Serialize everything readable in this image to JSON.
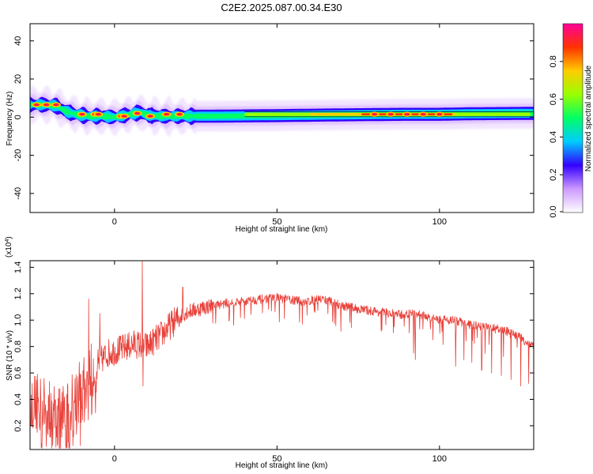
{
  "title": "C2E2.2025.087.00.34.E30",
  "chart_data": [
    {
      "type": "heatmap",
      "xlabel": "Height of straight line (km)",
      "ylabel": "Frequency (Hz)",
      "xlim": [
        -26,
        129
      ],
      "ylim": [
        -50,
        49
      ],
      "xticks": [
        0,
        50,
        100
      ],
      "yticks": [
        -40,
        -20,
        0,
        20,
        40
      ],
      "colorbar": {
        "label": "Normalized spectral amplitude",
        "range": [
          0,
          1
        ],
        "ticks": [
          "0.0",
          "0.2",
          "0.4",
          "0.6",
          "0.8"
        ],
        "colors": [
          "#ffffff",
          "#cc99ff",
          "#3300ff",
          "#00ccff",
          "#00ff66",
          "#99ff00",
          "#ffcc00",
          "#ff3300",
          "#ff0099"
        ]
      },
      "ridge": [
        {
          "x": -26,
          "y": 6.5
        },
        {
          "x": -22,
          "y": 6.5
        },
        {
          "x": -18,
          "y": 6
        },
        {
          "x": -15,
          "y": 3
        },
        {
          "x": -12,
          "y": 1.5
        },
        {
          "x": -8,
          "y": 0.5
        },
        {
          "x": -4,
          "y": 0.5
        },
        {
          "x": 0,
          "y": 0
        },
        {
          "x": 5,
          "y": 1.5
        },
        {
          "x": 8,
          "y": 2.5
        },
        {
          "x": 10,
          "y": 1
        },
        {
          "x": 14,
          "y": 0.5
        },
        {
          "x": 20,
          "y": 0.5
        },
        {
          "x": 30,
          "y": 0.5
        },
        {
          "x": 50,
          "y": 0.8
        },
        {
          "x": 70,
          "y": 1.2
        },
        {
          "x": 90,
          "y": 1.5
        },
        {
          "x": 100,
          "y": 1.5
        },
        {
          "x": 110,
          "y": 1.8
        },
        {
          "x": 129,
          "y": 2.0
        }
      ],
      "hotspots": [
        {
          "x": -24,
          "y": 6.5
        },
        {
          "x": -21,
          "y": 6.5
        },
        {
          "x": -18,
          "y": 6.5
        },
        {
          "x": -10,
          "y": 1.5
        },
        {
          "x": -6,
          "y": 1.5
        },
        {
          "x": -5,
          "y": 1.5
        },
        {
          "x": 2,
          "y": 0.5
        },
        {
          "x": 3,
          "y": 0.5
        },
        {
          "x": 7,
          "y": 2
        },
        {
          "x": 11,
          "y": 0.5
        },
        {
          "x": 16,
          "y": 1.5
        },
        {
          "x": 20,
          "y": 1.5
        },
        {
          "x": 80,
          "y": 1.5
        },
        {
          "x": 85,
          "y": 1.5
        },
        {
          "x": 90,
          "y": 1.5
        },
        {
          "x": 95,
          "y": 1.5
        },
        {
          "x": 100,
          "y": 1.5
        }
      ]
    },
    {
      "type": "line",
      "xlabel": "Height of straight line (km)",
      "ylabel": "SNR (10 * v/v)",
      "y_multiplier": "(x10^4)",
      "xlim": [
        -26,
        129
      ],
      "ylim": [
        0.02,
        1.45
      ],
      "xticks": [
        0,
        50,
        100
      ],
      "yticks": [
        0.2,
        0.4,
        0.6,
        0.8,
        1.0,
        1.2,
        1.4
      ],
      "color": "#e8413a",
      "envelope": [
        {
          "x": -26,
          "y": 0.4
        },
        {
          "x": -22,
          "y": 0.35
        },
        {
          "x": -18,
          "y": 0.3
        },
        {
          "x": -14,
          "y": 0.35
        },
        {
          "x": -10,
          "y": 0.5
        },
        {
          "x": -6,
          "y": 0.65
        },
        {
          "x": -2,
          "y": 0.75
        },
        {
          "x": 2,
          "y": 0.78
        },
        {
          "x": 6,
          "y": 0.82
        },
        {
          "x": 10,
          "y": 0.8
        },
        {
          "x": 14,
          "y": 0.88
        },
        {
          "x": 18,
          "y": 0.98
        },
        {
          "x": 22,
          "y": 1.06
        },
        {
          "x": 28,
          "y": 1.1
        },
        {
          "x": 35,
          "y": 1.13
        },
        {
          "x": 42,
          "y": 1.15
        },
        {
          "x": 50,
          "y": 1.17
        },
        {
          "x": 58,
          "y": 1.14
        },
        {
          "x": 64,
          "y": 1.16
        },
        {
          "x": 70,
          "y": 1.11
        },
        {
          "x": 76,
          "y": 1.08
        },
        {
          "x": 82,
          "y": 1.06
        },
        {
          "x": 88,
          "y": 1.04
        },
        {
          "x": 93,
          "y": 1.05
        },
        {
          "x": 98,
          "y": 1.01
        },
        {
          "x": 104,
          "y": 1.0
        },
        {
          "x": 110,
          "y": 0.96
        },
        {
          "x": 116,
          "y": 0.94
        },
        {
          "x": 120,
          "y": 0.92
        },
        {
          "x": 124,
          "y": 0.88
        },
        {
          "x": 129,
          "y": 0.8
        }
      ],
      "spikes": [
        {
          "x": 8.5,
          "y": 1.45
        },
        {
          "x": 8.8,
          "y": 0.5
        },
        {
          "x": 21,
          "y": 1.25
        },
        {
          "x": -8,
          "y": 1.16
        },
        {
          "x": -4.5,
          "y": 1.05
        },
        {
          "x": -10.5,
          "y": 0.05
        },
        {
          "x": -15,
          "y": 0.05
        },
        {
          "x": -19,
          "y": 0.05
        },
        {
          "x": -25.5,
          "y": 0.2
        },
        {
          "x": -9,
          "y": 0.5
        },
        {
          "x": 92,
          "y": 0.75
        },
        {
          "x": 92.6,
          "y": 0.7
        },
        {
          "x": 105,
          "y": 0.65
        },
        {
          "x": 107.5,
          "y": 0.7
        },
        {
          "x": 110,
          "y": 0.68
        },
        {
          "x": 113,
          "y": 0.62
        },
        {
          "x": 116,
          "y": 0.6
        },
        {
          "x": 119,
          "y": 0.58
        },
        {
          "x": 122,
          "y": 0.55
        },
        {
          "x": 125,
          "y": 0.5
        },
        {
          "x": 127.5,
          "y": 0.52
        },
        {
          "x": 86,
          "y": 0.95
        },
        {
          "x": 98,
          "y": 0.85
        }
      ]
    }
  ]
}
